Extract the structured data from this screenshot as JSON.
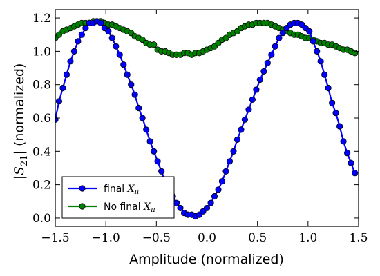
{
  "chart_data": {
    "type": "line",
    "title": "",
    "xlabel": "Amplitude (normalized)",
    "ylabel": "|S21| (normalized)",
    "xlim": [
      -1.5,
      1.5
    ],
    "ylim": [
      -0.05,
      1.25
    ],
    "xticks": [
      -1.5,
      -1.0,
      -0.5,
      0.0,
      0.5,
      1.0,
      1.5
    ],
    "xtick_labels": [
      "−1.5",
      "−1.0",
      "−0.5",
      "0.0",
      "0.5",
      "1.0",
      "1.5"
    ],
    "yticks": [
      0.0,
      0.2,
      0.4,
      0.6,
      0.8,
      1.0,
      1.2
    ],
    "ytick_labels": [
      "0.0",
      "0.2",
      "0.4",
      "0.6",
      "0.8",
      "1.0",
      "1.2"
    ],
    "grid": false,
    "legend_position": "bottom-left",
    "series": [
      {
        "name": "final Xπ",
        "legend_text": "final ",
        "legend_math": "Xπ",
        "color": "#0000ff",
        "marker_color": "#0000ff",
        "x": [
          -1.5,
          -1.463,
          -1.425,
          -1.388,
          -1.35,
          -1.313,
          -1.275,
          -1.238,
          -1.2,
          -1.163,
          -1.125,
          -1.088,
          -1.05,
          -1.013,
          -0.975,
          -0.938,
          -0.9,
          -0.863,
          -0.825,
          -0.788,
          -0.75,
          -0.713,
          -0.675,
          -0.638,
          -0.6,
          -0.563,
          -0.525,
          -0.488,
          -0.45,
          -0.413,
          -0.375,
          -0.338,
          -0.3,
          -0.263,
          -0.225,
          -0.188,
          -0.15,
          -0.113,
          -0.075,
          -0.038,
          0.0,
          0.038,
          0.075,
          0.113,
          0.15,
          0.188,
          0.225,
          0.263,
          0.3,
          0.338,
          0.375,
          0.413,
          0.45,
          0.488,
          0.525,
          0.563,
          0.6,
          0.638,
          0.675,
          0.713,
          0.75,
          0.788,
          0.825,
          0.863,
          0.9,
          0.938,
          0.975,
          1.013,
          1.05,
          1.088,
          1.125,
          1.163,
          1.2,
          1.238,
          1.275,
          1.313,
          1.35,
          1.388,
          1.425,
          1.463
        ],
        "y": [
          0.59,
          0.7,
          0.78,
          0.86,
          0.94,
          1.0,
          1.06,
          1.1,
          1.14,
          1.17,
          1.17,
          1.18,
          1.17,
          1.14,
          1.12,
          1.08,
          1.03,
          0.98,
          0.92,
          0.86,
          0.8,
          0.74,
          0.66,
          0.6,
          0.53,
          0.46,
          0.4,
          0.34,
          0.28,
          0.22,
          0.18,
          0.13,
          0.09,
          0.06,
          0.03,
          0.02,
          0.02,
          0.01,
          0.02,
          0.04,
          0.06,
          0.09,
          0.13,
          0.17,
          0.22,
          0.28,
          0.34,
          0.4,
          0.47,
          0.53,
          0.59,
          0.65,
          0.71,
          0.77,
          0.83,
          0.88,
          0.93,
          0.98,
          1.03,
          1.08,
          1.11,
          1.14,
          1.16,
          1.17,
          1.17,
          1.16,
          1.14,
          1.12,
          1.06,
          1.0,
          0.94,
          0.86,
          0.78,
          0.69,
          0.63,
          0.55,
          0.46,
          0.39,
          0.33,
          0.27
        ]
      },
      {
        "name": "No final Xπ",
        "legend_text": "No final ",
        "legend_math": "Xπ",
        "color": "#008000",
        "marker_color": "#008000",
        "x": [
          -1.5,
          -1.463,
          -1.425,
          -1.388,
          -1.35,
          -1.313,
          -1.275,
          -1.238,
          -1.2,
          -1.163,
          -1.125,
          -1.088,
          -1.05,
          -1.013,
          -0.975,
          -0.938,
          -0.9,
          -0.863,
          -0.825,
          -0.788,
          -0.75,
          -0.713,
          -0.675,
          -0.638,
          -0.6,
          -0.563,
          -0.525,
          -0.488,
          -0.45,
          -0.413,
          -0.375,
          -0.338,
          -0.3,
          -0.263,
          -0.225,
          -0.188,
          -0.15,
          -0.113,
          -0.075,
          -0.038,
          0.0,
          0.038,
          0.075,
          0.113,
          0.15,
          0.188,
          0.225,
          0.263,
          0.3,
          0.338,
          0.375,
          0.413,
          0.45,
          0.488,
          0.525,
          0.563,
          0.6,
          0.638,
          0.675,
          0.713,
          0.75,
          0.788,
          0.825,
          0.863,
          0.9,
          0.938,
          0.975,
          1.013,
          1.05,
          1.088,
          1.125,
          1.163,
          1.2,
          1.238,
          1.275,
          1.313,
          1.35,
          1.388,
          1.425,
          1.463
        ],
        "y": [
          1.08,
          1.1,
          1.12,
          1.13,
          1.14,
          1.15,
          1.16,
          1.17,
          1.17,
          1.17,
          1.18,
          1.18,
          1.18,
          1.17,
          1.16,
          1.16,
          1.15,
          1.14,
          1.13,
          1.12,
          1.11,
          1.09,
          1.08,
          1.07,
          1.05,
          1.04,
          1.04,
          1.01,
          1.0,
          1.0,
          0.99,
          0.98,
          0.98,
          0.98,
          0.99,
          0.99,
          0.98,
          0.99,
          0.99,
          1.0,
          1.01,
          1.02,
          1.03,
          1.05,
          1.07,
          1.08,
          1.1,
          1.11,
          1.12,
          1.14,
          1.15,
          1.16,
          1.16,
          1.17,
          1.17,
          1.17,
          1.17,
          1.16,
          1.15,
          1.14,
          1.13,
          1.12,
          1.11,
          1.1,
          1.1,
          1.09,
          1.08,
          1.08,
          1.07,
          1.06,
          1.05,
          1.05,
          1.04,
          1.04,
          1.03,
          1.02,
          1.01,
          1.01,
          1.0,
          0.99
        ]
      }
    ]
  }
}
